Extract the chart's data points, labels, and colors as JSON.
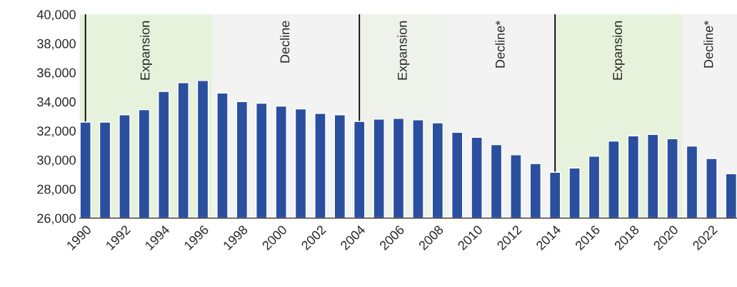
{
  "chart_data": {
    "type": "bar",
    "color": "#2b4f9f",
    "x": [
      1990,
      1991,
      1992,
      1993,
      1994,
      1995,
      1996,
      1997,
      1998,
      1999,
      2000,
      2001,
      2002,
      2003,
      2004,
      2005,
      2006,
      2007,
      2008,
      2009,
      2010,
      2011,
      2012,
      2013,
      2014,
      2015,
      2016,
      2017,
      2018,
      2019,
      2020,
      2021,
      2022,
      2023
    ],
    "values": [
      32600,
      32600,
      33100,
      33450,
      34700,
      35300,
      35450,
      34600,
      34000,
      33900,
      33700,
      33500,
      33200,
      33100,
      32650,
      32800,
      32850,
      32750,
      32550,
      31900,
      31550,
      31050,
      30350,
      29750,
      29150,
      29450,
      30250,
      31300,
      31650,
      31750,
      31450,
      30950,
      30100,
      29050
    ],
    "xlim": [
      1989.7,
      2023.3
    ],
    "xticks": [
      1990,
      1992,
      1994,
      1996,
      1998,
      2000,
      2002,
      2004,
      2006,
      2008,
      2010,
      2012,
      2014,
      2016,
      2018,
      2020,
      2022
    ],
    "ylim": [
      26000,
      40000
    ],
    "yticks": [
      {
        "value": 26000,
        "label": "26,000"
      },
      {
        "value": 28000,
        "label": "28,000"
      },
      {
        "value": 30000,
        "label": "30,000"
      },
      {
        "value": 32000,
        "label": "32,000"
      },
      {
        "value": 34000,
        "label": "34,000"
      },
      {
        "value": 36000,
        "label": "36,000"
      },
      {
        "value": 38000,
        "label": "38,000"
      },
      {
        "value": 40000,
        "label": "40,000"
      }
    ],
    "grid": false,
    "bands": [
      {
        "axis": "x",
        "from": 1989.7,
        "to": 1996.5,
        "label": "Expansion",
        "color": "#e7f2dc"
      },
      {
        "axis": "x",
        "from": 1996.5,
        "to": 2004,
        "label": "Decline",
        "color": "#f3f3f3"
      },
      {
        "axis": "x",
        "from": 2004,
        "to": 2008.5,
        "label": "Expansion",
        "color": "#eef2ea"
      },
      {
        "axis": "x",
        "from": 2008.5,
        "to": 2014,
        "label": "Decline*",
        "color": "#f3f3f3"
      },
      {
        "axis": "x",
        "from": 2014,
        "to": 2020.5,
        "label": "Expansion",
        "color": "#e7f2dc"
      },
      {
        "axis": "x",
        "from": 2020.5,
        "to": 2023.3,
        "label": "Decline*",
        "color": "#f3f3f3"
      }
    ],
    "ref_lines": [
      {
        "axis": "x",
        "value": 1990,
        "color": "#000000"
      },
      {
        "axis": "x",
        "value": 2004,
        "color": "#000000"
      },
      {
        "axis": "x",
        "value": 2014,
        "color": "#000000"
      }
    ]
  }
}
